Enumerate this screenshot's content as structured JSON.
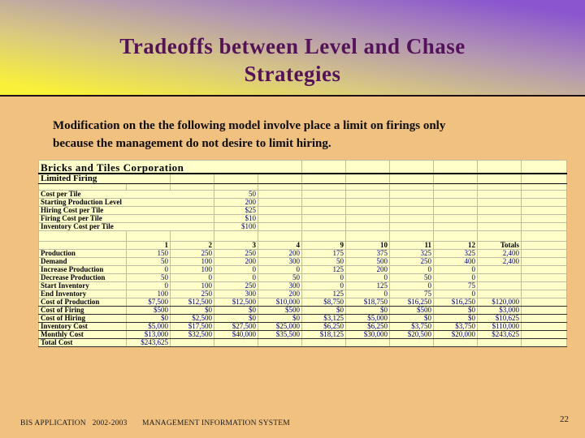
{
  "slide_title": {
    "line1": "Tradeoffs between Level and Chase",
    "line2": "Strategies"
  },
  "body_text": {
    "line1": "Modification on the the following model involve place a limit on firings only",
    "line2": "because the management do not desire to limit hiring."
  },
  "footer": {
    "left": "BIS APPLICATION   2002-2003",
    "center": "MANAGEMENT INFORMATION SYSTEM",
    "page_number": "22"
  },
  "colors": {
    "header_gradient_yellow": "#f9f03a",
    "header_gradient_purple": "#8a55cf",
    "body_background": "#f1c180",
    "title_text": "#54125a",
    "table_background": "#ffffca",
    "table_gridline": "#bdbda4",
    "table_value_text": "#00008c"
  },
  "spreadsheet": {
    "title": "Bricks and Tiles Corporation",
    "subtitle": "Limited Firing",
    "parameters": [
      {
        "label": "Cost per Tile",
        "value": "50"
      },
      {
        "label": "Starting Production Level",
        "value": "200"
      },
      {
        "label": "Hiring Cost per Tile",
        "value": "$25"
      },
      {
        "label": "Firing Cost per Tile",
        "value": "$10"
      },
      {
        "label": "Inventory Cost per Tile",
        "value": "$100"
      }
    ],
    "column_headers": [
      "",
      "1",
      "2",
      "3",
      "4",
      "9",
      "10",
      "11",
      "12",
      "Totals"
    ],
    "data_rows": [
      {
        "label": "Production",
        "cost": false,
        "values": [
          "150",
          "250",
          "250",
          "200",
          "175",
          "375",
          "325",
          "325",
          "2,400"
        ]
      },
      {
        "label": "Demand",
        "cost": false,
        "values": [
          "50",
          "100",
          "200",
          "300",
          "50",
          "500",
          "250",
          "400",
          "2,400"
        ]
      },
      {
        "label": "Increase Production",
        "cost": false,
        "values": [
          "0",
          "100",
          "0",
          "0",
          "125",
          "200",
          "0",
          "0",
          ""
        ]
      },
      {
        "label": "Decrease Production",
        "cost": false,
        "values": [
          "50",
          "0",
          "0",
          "50",
          "0",
          "0",
          "50",
          "0",
          ""
        ]
      },
      {
        "label": "Start Inventory",
        "cost": false,
        "values": [
          "0",
          "100",
          "250",
          "300",
          "0",
          "125",
          "0",
          "75",
          ""
        ]
      },
      {
        "label": "End Inventory",
        "cost": false,
        "values": [
          "100",
          "250",
          "300",
          "200",
          "125",
          "0",
          "75",
          "0",
          ""
        ]
      },
      {
        "label": "Cost of Production",
        "cost": true,
        "values": [
          "$7,500",
          "$12,500",
          "$12,500",
          "$10,000",
          "$8,750",
          "$18,750",
          "$16,250",
          "$16,250",
          "$120,000"
        ]
      },
      {
        "label": "Cost of Firing",
        "cost": true,
        "values": [
          "$500",
          "$0",
          "$0",
          "$500",
          "$0",
          "$0",
          "$500",
          "$0",
          "$3,000"
        ]
      },
      {
        "label": "Cost of Hiring",
        "cost": true,
        "values": [
          "$0",
          "$2,500",
          "$0",
          "$0",
          "$3,125",
          "$5,000",
          "$0",
          "$0",
          "$10,625"
        ]
      },
      {
        "label": "Inventory Cost",
        "cost": true,
        "values": [
          "$5,000",
          "$17,500",
          "$27,500",
          "$25,000",
          "$6,250",
          "$6,250",
          "$3,750",
          "$3,750",
          "$110,000"
        ]
      },
      {
        "label": "Monthly Cost",
        "cost": true,
        "values": [
          "$13,000",
          "$32,500",
          "$40,000",
          "$35,500",
          "$18,125",
          "$30,000",
          "$20,500",
          "$20,000",
          "$243,625"
        ]
      },
      {
        "label": "Total Cost",
        "cost": true,
        "values": [
          "$243,625",
          "",
          "",
          "",
          "",
          "",
          "",
          "",
          ""
        ]
      }
    ]
  }
}
